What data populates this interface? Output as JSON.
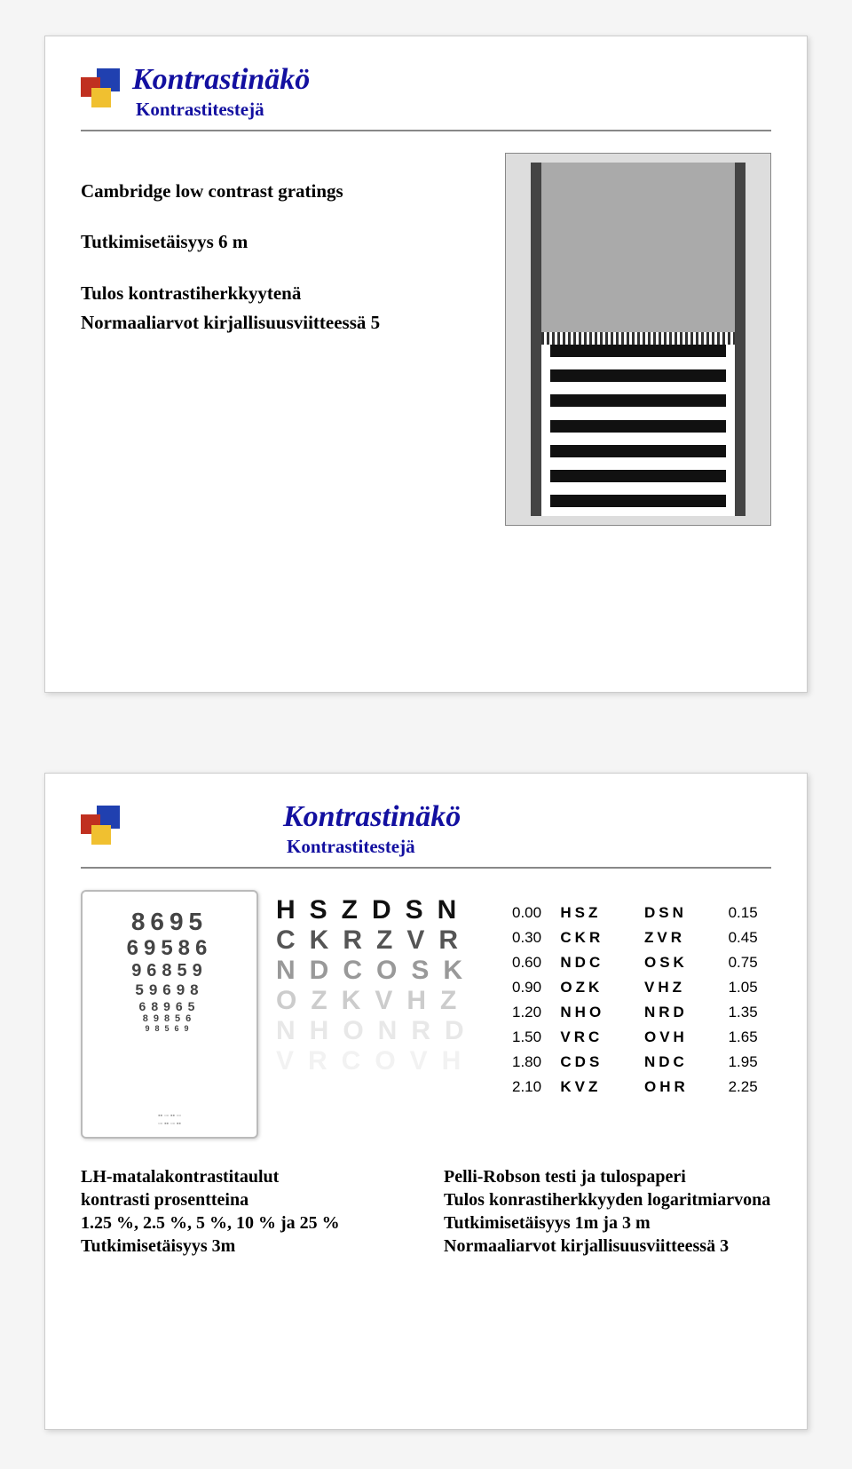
{
  "slide1": {
    "title": "Kontrastinäkö",
    "subtitle": "Kontrastitestejä",
    "p1": "Cambridge low contrast gratings",
    "p2": "Tutkimisetäisyys 6 m",
    "p3": "Tulos kontrastiherkkyytenä",
    "p4": "Normaaliarvot kirjallisuusviitteessä 5"
  },
  "slide2": {
    "title": "Kontrastinäkö",
    "subtitle": "Kontrastitestejä",
    "lh_chart": {
      "rows": [
        {
          "text": "8695",
          "size": 28
        },
        {
          "text": "69586",
          "size": 24
        },
        {
          "text": "96859",
          "size": 20
        },
        {
          "text": "59698",
          "size": 17
        },
        {
          "text": "68965",
          "size": 14
        },
        {
          "text": "89856",
          "size": 11
        },
        {
          "text": "98569",
          "size": 9
        }
      ]
    },
    "mid_chart": {
      "rows": [
        "HSZDSN",
        "CKRZVR",
        "NDCOSK",
        "OZKVHZ",
        "NHONRD",
        "VRCOVH"
      ]
    },
    "pelli": {
      "rows": [
        {
          "n1": "0.00",
          "l1": "HSZ",
          "l2": "DSN",
          "n2": "0.15"
        },
        {
          "n1": "0.30",
          "l1": "CKR",
          "l2": "ZVR",
          "n2": "0.45"
        },
        {
          "n1": "0.60",
          "l1": "NDC",
          "l2": "OSK",
          "n2": "0.75"
        },
        {
          "n1": "0.90",
          "l1": "OZK",
          "l2": "VHZ",
          "n2": "1.05"
        },
        {
          "n1": "1.20",
          "l1": "NHO",
          "l2": "NRD",
          "n2": "1.35"
        },
        {
          "n1": "1.50",
          "l1": "VRC",
          "l2": "OVH",
          "n2": "1.65"
        },
        {
          "n1": "1.80",
          "l1": "CDS",
          "l2": "NDC",
          "n2": "1.95"
        },
        {
          "n1": "2.10",
          "l1": "KVZ",
          "l2": "OHR",
          "n2": "2.25"
        }
      ]
    },
    "bottom_left": {
      "l1": "LH-matalakontrastitaulut",
      "l2": "kontrasti prosentteina",
      "l3": "1.25 %, 2.5 %, 5 %, 10 % ja 25 %",
      "l4": "Tutkimisetäisyys 3m"
    },
    "bottom_right": {
      "l1": "Pelli-Robson testi ja tulospaperi",
      "l2": "Tulos konrastiherkkyyden logaritmiarvona",
      "l3": "Tutkimisetäisyys 1m ja 3 m",
      "l4": "Normaaliarvot kirjallisuusviitteessä 3"
    }
  }
}
